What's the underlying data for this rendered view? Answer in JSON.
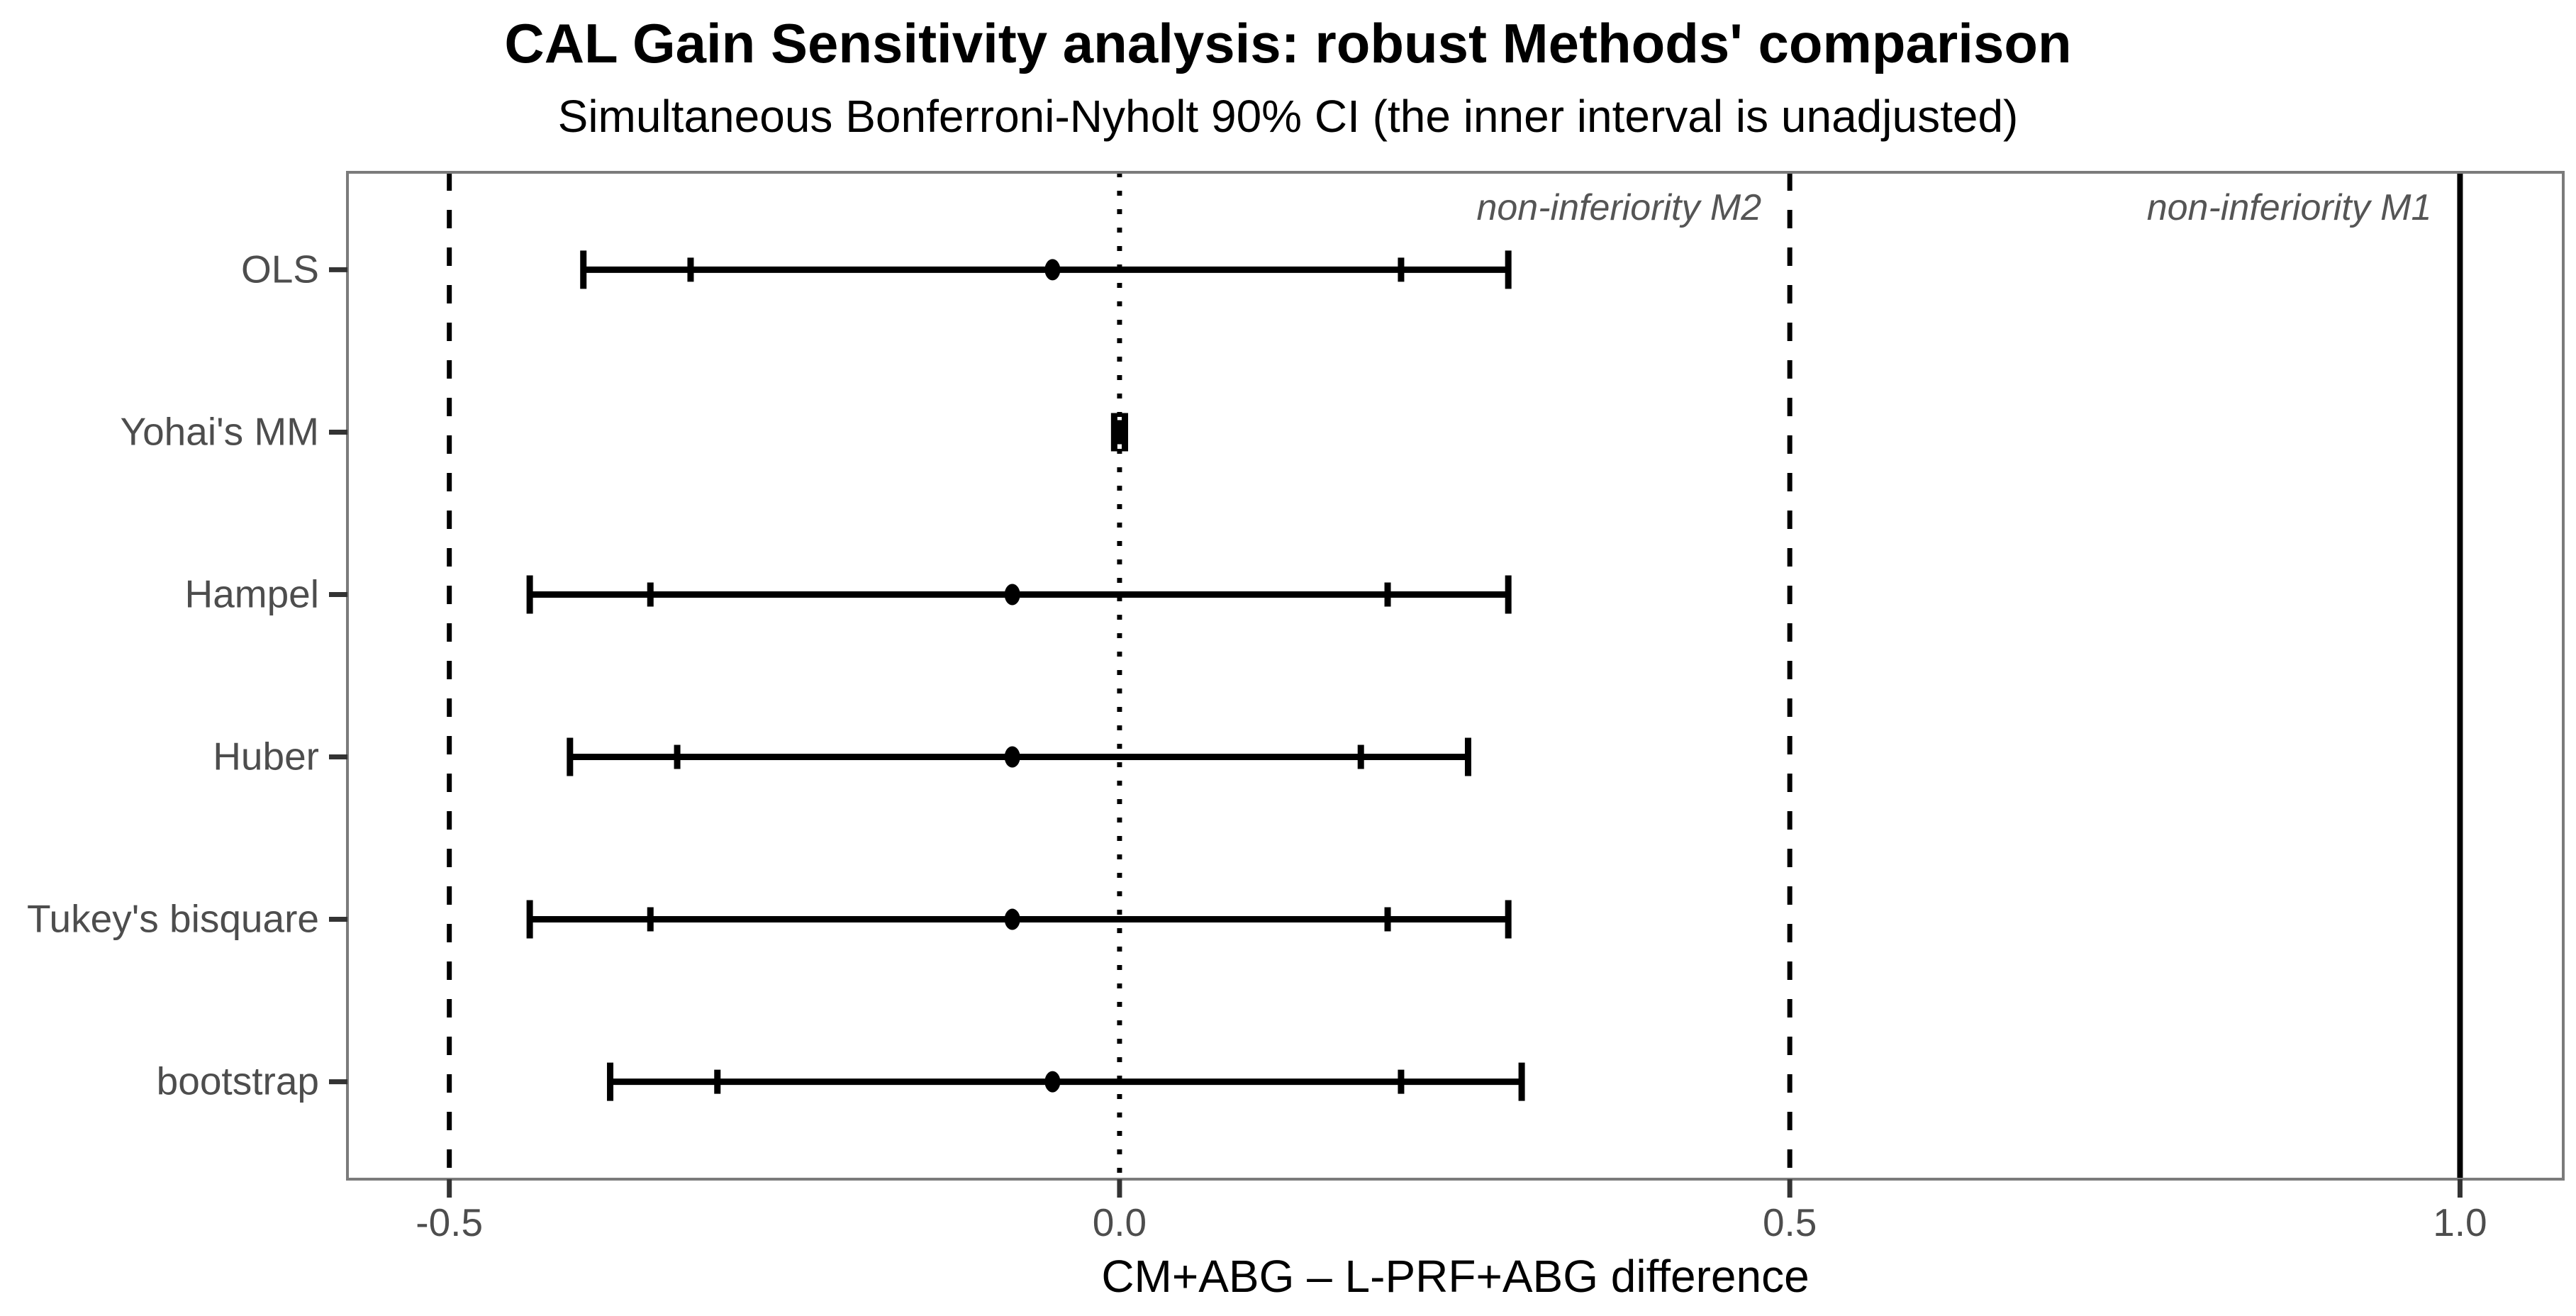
{
  "chart": {
    "title": "CAL Gain Sensitivity analysis: robust Methods' comparison",
    "subtitle": "Simultaneous Bonferroni-Nyholt 90% CI (the inner interval is unadjusted)",
    "x_axis_title": "CM+ABG – L-PRF+ABG difference"
  },
  "chart_data": {
    "type": "forest-interval",
    "orientation": "horizontal",
    "title": "CAL Gain Sensitivity analysis: robust Methods' comparison",
    "subtitle": "Simultaneous Bonferroni-Nyholt 90% CI (the inner interval is unadjusted)",
    "xlabel": "CM+ABG – L-PRF+ABG difference",
    "ylabel": "",
    "categories": [
      "OLS",
      "Yohai's MM",
      "Hampel",
      "Huber",
      "Tukey's bisquare",
      "bootstrap"
    ],
    "series": [
      {
        "name": "OLS",
        "point": -0.05,
        "inner": [
          -0.32,
          0.21
        ],
        "outer": [
          -0.4,
          0.29
        ]
      },
      {
        "name": "Yohai's MM",
        "point": 0.0,
        "inner": [
          -0.002,
          0.002
        ],
        "outer": [
          -0.004,
          0.004
        ]
      },
      {
        "name": "Hampel",
        "point": -0.08,
        "inner": [
          -0.35,
          0.2
        ],
        "outer": [
          -0.44,
          0.29
        ]
      },
      {
        "name": "Huber",
        "point": -0.08,
        "inner": [
          -0.33,
          0.18
        ],
        "outer": [
          -0.41,
          0.26
        ]
      },
      {
        "name": "Tukey's bisquare",
        "point": -0.08,
        "inner": [
          -0.35,
          0.2
        ],
        "outer": [
          -0.44,
          0.29
        ]
      },
      {
        "name": "bootstrap",
        "point": -0.05,
        "inner": [
          -0.3,
          0.21
        ],
        "outer": [
          -0.38,
          0.3
        ]
      }
    ],
    "x_ticks": [
      -0.5,
      0.0,
      0.5,
      1.0
    ],
    "x_tick_labels": [
      "-0.5",
      "0.0",
      "0.5",
      "1.0"
    ],
    "xlim": [
      -0.576,
      1.077
    ],
    "grid": "off",
    "legend_position": "none",
    "reference_lines": [
      {
        "x": -0.5,
        "style": "dashed"
      },
      {
        "x": 0.0,
        "style": "dotted"
      },
      {
        "x": 0.5,
        "style": "dashed"
      },
      {
        "x": 1.0,
        "style": "solid"
      }
    ],
    "annotations": [
      {
        "text": "non-inferiority M2",
        "anchor_x": 0.5,
        "align": "right"
      },
      {
        "text": "non-inferiority M1",
        "anchor_x": 1.0,
        "align": "right"
      }
    ],
    "colors": {
      "data": "#000000",
      "axis_text": "#4d4d4d",
      "annotation_text": "#555555",
      "panel_border": "#7b7b7b",
      "tick_mark": "#333333",
      "background": "#ffffff"
    }
  }
}
